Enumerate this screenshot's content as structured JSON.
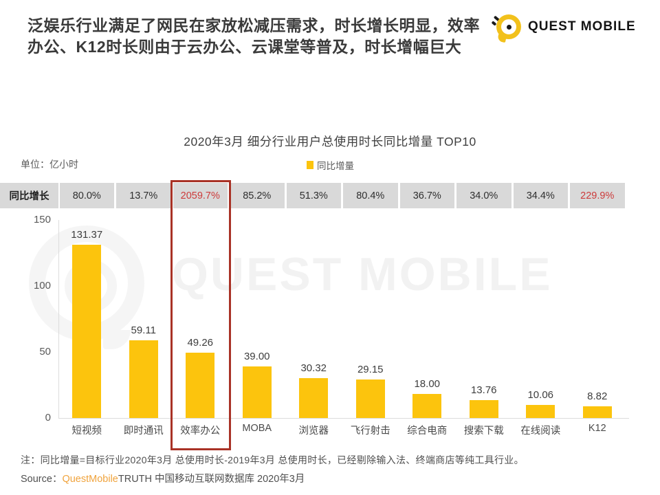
{
  "header": {
    "title_line1": "泛娱乐行业满足了网民在家放松减压需求，时长增长明显，效率",
    "title_line2": "办公、K12时长则由于云办公、云课堂等普及，时长增幅巨大"
  },
  "logo": {
    "text": "QUEST MOBILE"
  },
  "chart": {
    "title": "2020年3月 细分行业用户总使用时长同比增量 TOP10",
    "unit_label": "单位：亿小时",
    "legend_label": "同比增量",
    "growth_row_label": "同比增长"
  },
  "chart_data": {
    "type": "bar",
    "title": "2020年3月 细分行业用户总使用时长同比增量 TOP10",
    "ylabel": "亿小时",
    "xlabel": "",
    "ylim": [
      0,
      150
    ],
    "yticks": [
      0,
      50,
      100,
      150
    ],
    "grid": false,
    "legend_position": "top",
    "categories": [
      "短视频",
      "即时通讯",
      "效率办公",
      "MOBA",
      "浏览器",
      "飞行射击",
      "综合电商",
      "搜索下载",
      "在线阅读",
      "K12"
    ],
    "values": [
      131.37,
      59.11,
      49.26,
      39.0,
      30.32,
      29.15,
      18.0,
      13.76,
      10.06,
      8.82
    ],
    "value_labels": [
      "131.37",
      "59.11",
      "49.26",
      "39.00",
      "30.32",
      "29.15",
      "18.00",
      "13.76",
      "10.06",
      "8.82"
    ],
    "growth_rates": [
      "80.0%",
      "13.7%",
      "2059.7%",
      "85.2%",
      "51.3%",
      "80.4%",
      "36.7%",
      "34.0%",
      "34.4%",
      "229.9%"
    ],
    "growth_red_indexes": [
      2,
      9
    ],
    "highlight_category_index": 2,
    "bar_color": "#fcc40d",
    "growth_normal_color": "#2e2e2e",
    "growth_red_color": "#cc3a3a",
    "highlight_border_color": "#a93226"
  },
  "watermark": {
    "text": "QUEST MOBILE"
  },
  "footer": {
    "note": "注：同比增量=目标行业2020年3月 总使用时长-2019年3月 总使用时长，已经剔除输入法、终端商店等纯工具行业。",
    "source_prefix": "Source：",
    "source_brand": "QuestMobile",
    "source_suffix": "TRUTH 中国移动互联网数据库 2020年3月"
  }
}
